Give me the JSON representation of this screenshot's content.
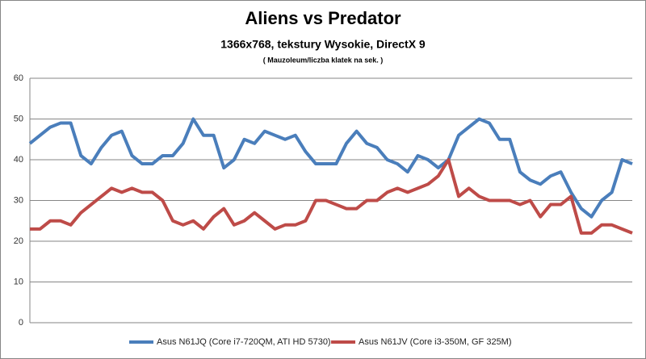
{
  "chart_data": {
    "type": "line",
    "title": "Aliens vs Predator",
    "subtitle": "1366x768, tekstury Wysokie, DirectX 9",
    "note": "( Mauzoleum/liczba klatek na sek. )",
    "ylim": [
      0,
      60
    ],
    "yticks": [
      0,
      10,
      20,
      30,
      40,
      50,
      60
    ],
    "grid": true,
    "legend": "bottom",
    "series": [
      {
        "name": "Asus N61JQ (Core i7-720QM, ATI HD 5730)",
        "color": "#4a7ebb",
        "values": [
          44,
          46,
          48,
          49,
          49,
          41,
          39,
          43,
          46,
          47,
          41,
          39,
          39,
          41,
          41,
          44,
          50,
          46,
          46,
          38,
          40,
          45,
          44,
          47,
          46,
          45,
          46,
          42,
          39,
          39,
          39,
          44,
          47,
          44,
          43,
          40,
          39,
          37,
          41,
          40,
          38,
          40,
          46,
          48,
          50,
          49,
          45,
          45,
          37,
          35,
          34,
          36,
          37,
          32,
          28,
          26,
          30,
          32,
          40,
          39
        ]
      },
      {
        "name": "Asus N61JV (Core i3-350M, GF 325M)",
        "color": "#be4b48",
        "values": [
          23,
          23,
          25,
          25,
          24,
          27,
          29,
          31,
          33,
          32,
          33,
          32,
          32,
          30,
          25,
          24,
          25,
          23,
          26,
          28,
          24,
          25,
          27,
          25,
          23,
          24,
          24,
          25,
          30,
          30,
          29,
          28,
          28,
          30,
          30,
          32,
          33,
          32,
          33,
          34,
          36,
          40,
          31,
          33,
          31,
          30,
          30,
          30,
          29,
          30,
          26,
          29,
          29,
          31,
          22,
          22,
          24,
          24,
          23,
          22
        ]
      }
    ]
  }
}
